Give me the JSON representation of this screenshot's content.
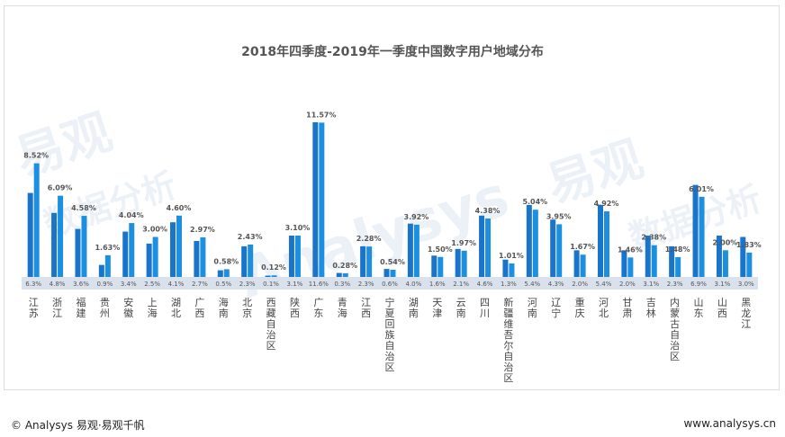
{
  "chart_data": {
    "type": "bar",
    "title": "2018年四季度-2019年一季度中国数字用户地域分布",
    "categories": [
      "江苏",
      "浙江",
      "福建",
      "贵州",
      "安徽",
      "上海",
      "湖北",
      "广西",
      "海南",
      "北京",
      "西藏自治区",
      "陕西",
      "广东",
      "青海",
      "江西",
      "宁夏回族自治区",
      "湖南",
      "天津",
      "云南",
      "四川",
      "新疆维吾尔自治区",
      "河南",
      "辽宁",
      "重庆",
      "河北",
      "甘肃",
      "吉林",
      "内蒙古自治区",
      "山东",
      "山西",
      "黑龙江"
    ],
    "series": [
      {
        "values": [
          6.3,
          4.8,
          3.6,
          0.9,
          3.4,
          2.5,
          4.1,
          2.7,
          0.5,
          2.3,
          0.1,
          3.1,
          11.6,
          0.3,
          2.3,
          0.6,
          4.0,
          1.6,
          2.1,
          4.6,
          1.3,
          5.4,
          4.3,
          2.0,
          5.4,
          2.0,
          3.1,
          2.3,
          6.9,
          3.1,
          3.0
        ],
        "labels": [
          "6.3%",
          "4.8%",
          "3.6%",
          "0.9%",
          "3.4%",
          "2.5%",
          "4.1%",
          "2.7%",
          "0.5%",
          "2.3%",
          "0.1%",
          "3.1%",
          "11.6%",
          "0.3%",
          "2.3%",
          "0.6%",
          "4.0%",
          "1.6%",
          "2.1%",
          "4.6%",
          "1.3%",
          "5.4%",
          "4.3%",
          "2.0%",
          "5.4%",
          "2.0%",
          "3.1%",
          "2.3%",
          "6.9%",
          "3.1%",
          "3.0%"
        ],
        "color": "#1a74c9"
      },
      {
        "values": [
          8.52,
          6.09,
          4.58,
          1.63,
          4.04,
          3.0,
          4.6,
          2.97,
          0.58,
          2.43,
          0.12,
          3.1,
          11.57,
          0.28,
          2.28,
          0.54,
          3.92,
          1.5,
          1.97,
          4.38,
          1.01,
          5.04,
          3.95,
          1.67,
          4.92,
          1.46,
          2.38,
          1.48,
          6.01,
          2.0,
          1.83
        ],
        "labels": [
          "8.52%",
          "6.09%",
          "4.58%",
          "1.63%",
          "4.04%",
          "3.00%",
          "4.60%",
          "2.97%",
          "0.58%",
          "2.43%",
          "0.12%",
          "3.10%",
          "11.57%",
          "0.28%",
          "2.28%",
          "0.54%",
          "3.92%",
          "1.50%",
          "1.97%",
          "4.38%",
          "1.01%",
          "5.04%",
          "3.95%",
          "1.67%",
          "4.92%",
          "1.46%",
          "2.38%",
          "1.48%",
          "6.01%",
          "2.00%",
          "1.83%"
        ],
        "color": "#1c8fe0"
      }
    ],
    "ylim": [
      0,
      12
    ],
    "grid": false,
    "legend": "none"
  },
  "footer": {
    "left": "© Analysys 易观·易观千帆",
    "right": "www.analysys.cn"
  },
  "watermark": {
    "text1": "易观",
    "text2": "Analysys",
    "text3": "数据分析"
  }
}
